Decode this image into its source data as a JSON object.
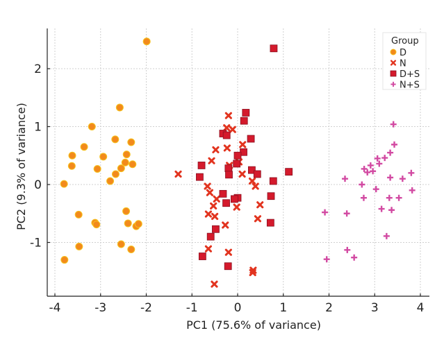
{
  "chart_data": {
    "type": "scatter",
    "title": "",
    "xlabel": "PC1 (75.6% of variance)",
    "ylabel": "PC2 (9.3% of variance)",
    "xlim": [
      -4.2,
      4.2
    ],
    "ylim": [
      -1.9,
      2.7
    ],
    "xticks": [
      -4,
      -3,
      -2,
      -1,
      0,
      1,
      2,
      3,
      4
    ],
    "yticks": [
      -1,
      0,
      1,
      2
    ],
    "grid": true,
    "legend": {
      "title": "Group",
      "position": "top-right"
    },
    "series": [
      {
        "name": "D",
        "marker": "circle",
        "color": "#F28A1C",
        "edge": "#F6C21E",
        "points": [
          [
            -1.99,
            2.47
          ],
          [
            -2.58,
            1.33
          ],
          [
            -3.19,
            1.0
          ],
          [
            -2.68,
            0.78
          ],
          [
            -2.33,
            0.73
          ],
          [
            -3.36,
            0.65
          ],
          [
            -3.62,
            0.5
          ],
          [
            -3.63,
            0.32
          ],
          [
            -2.94,
            0.48
          ],
          [
            -3.07,
            0.27
          ],
          [
            -2.43,
            0.52
          ],
          [
            -2.46,
            0.38
          ],
          [
            -2.3,
            0.35
          ],
          [
            -2.55,
            0.28
          ],
          [
            -2.67,
            0.18
          ],
          [
            -2.79,
            0.06
          ],
          [
            -3.8,
            0.01
          ],
          [
            -3.48,
            -0.52
          ],
          [
            -3.12,
            -0.66
          ],
          [
            -3.09,
            -0.69
          ],
          [
            -2.44,
            -0.46
          ],
          [
            -2.4,
            -0.67
          ],
          [
            -2.22,
            -0.72
          ],
          [
            -2.17,
            -0.68
          ],
          [
            -3.47,
            -1.07
          ],
          [
            -2.55,
            -1.03
          ],
          [
            -2.33,
            -1.12
          ],
          [
            -3.79,
            -1.3
          ]
        ]
      },
      {
        "name": "N",
        "marker": "x",
        "color": "#E2341F",
        "edge": "#F0A020",
        "points": [
          [
            -0.2,
            1.19
          ],
          [
            -0.24,
            0.98
          ],
          [
            -0.11,
            0.95
          ],
          [
            0.11,
            0.69
          ],
          [
            -0.48,
            0.6
          ],
          [
            -0.23,
            0.63
          ],
          [
            -1.3,
            0.18
          ],
          [
            -0.57,
            0.41
          ],
          [
            -0.18,
            0.33
          ],
          [
            0.03,
            0.39
          ],
          [
            0.1,
            0.18
          ],
          [
            0.32,
            0.06
          ],
          [
            0.39,
            -0.03
          ],
          [
            -0.66,
            -0.03
          ],
          [
            -0.61,
            -0.14
          ],
          [
            -0.46,
            -0.25
          ],
          [
            -0.53,
            -0.37
          ],
          [
            -0.02,
            -0.39
          ],
          [
            0.49,
            -0.35
          ],
          [
            -0.64,
            -0.51
          ],
          [
            -0.5,
            -0.55
          ],
          [
            0.44,
            -0.59
          ],
          [
            -0.27,
            -0.7
          ],
          [
            -0.64,
            -1.11
          ],
          [
            -0.2,
            -1.17
          ],
          [
            0.34,
            -1.48
          ],
          [
            0.33,
            -1.52
          ],
          [
            -0.51,
            -1.72
          ]
        ]
      },
      {
        "name": "D+S",
        "marker": "square",
        "color": "#D41A2C",
        "edge": "#8A1020",
        "points": [
          [
            0.79,
            2.35
          ],
          [
            0.18,
            1.24
          ],
          [
            0.14,
            1.1
          ],
          [
            -0.32,
            0.88
          ],
          [
            -0.24,
            0.85
          ],
          [
            0.29,
            0.79
          ],
          [
            0.13,
            0.56
          ],
          [
            0.0,
            0.5
          ],
          [
            -0.79,
            0.33
          ],
          [
            -0.83,
            0.13
          ],
          [
            -0.2,
            0.28
          ],
          [
            -0.02,
            0.36
          ],
          [
            -0.19,
            0.17
          ],
          [
            0.31,
            0.25
          ],
          [
            0.43,
            0.18
          ],
          [
            1.12,
            0.22
          ],
          [
            0.78,
            0.06
          ],
          [
            -0.32,
            -0.16
          ],
          [
            0.0,
            -0.23
          ],
          [
            -0.07,
            -0.25
          ],
          [
            0.73,
            -0.2
          ],
          [
            -0.25,
            -0.32
          ],
          [
            0.72,
            -0.66
          ],
          [
            -0.48,
            -0.77
          ],
          [
            -0.59,
            -0.9
          ],
          [
            -0.77,
            -1.24
          ],
          [
            -0.21,
            -1.41
          ]
        ]
      },
      {
        "name": "N+S",
        "marker": "plus",
        "color": "#D24AA2",
        "edge": "#D24AA2",
        "points": [
          [
            3.41,
            1.04
          ],
          [
            3.43,
            0.69
          ],
          [
            3.34,
            0.55
          ],
          [
            3.22,
            0.46
          ],
          [
            3.06,
            0.45
          ],
          [
            3.1,
            0.36
          ],
          [
            2.91,
            0.33
          ],
          [
            2.77,
            0.27
          ],
          [
            2.84,
            0.21
          ],
          [
            2.96,
            0.23
          ],
          [
            2.35,
            0.1
          ],
          [
            3.34,
            0.12
          ],
          [
            3.61,
            0.1
          ],
          [
            3.8,
            0.2
          ],
          [
            2.72,
            0.0
          ],
          [
            3.03,
            -0.08
          ],
          [
            3.82,
            -0.1
          ],
          [
            2.76,
            -0.23
          ],
          [
            3.32,
            -0.23
          ],
          [
            3.53,
            -0.23
          ],
          [
            1.91,
            -0.48
          ],
          [
            2.39,
            -0.5
          ],
          [
            3.15,
            -0.42
          ],
          [
            3.37,
            -0.44
          ],
          [
            3.26,
            -0.89
          ],
          [
            2.4,
            -1.13
          ],
          [
            2.55,
            -1.26
          ],
          [
            1.95,
            -1.29
          ]
        ]
      }
    ]
  }
}
